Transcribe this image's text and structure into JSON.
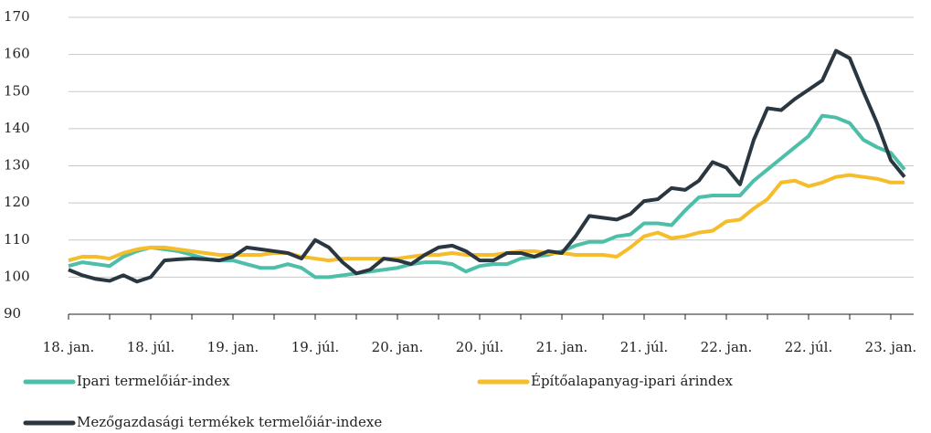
{
  "chart_data": {
    "type": "line",
    "categories": [
      "18. jan.",
      null,
      null,
      null,
      null,
      null,
      "18. júl.",
      null,
      null,
      null,
      null,
      null,
      "19. jan.",
      null,
      null,
      null,
      null,
      null,
      "19. júl.",
      null,
      null,
      null,
      null,
      null,
      "20. jan.",
      null,
      null,
      null,
      null,
      null,
      "20. júl.",
      null,
      null,
      null,
      null,
      null,
      "21. jan.",
      null,
      null,
      null,
      null,
      null,
      "21. júl.",
      null,
      null,
      null,
      null,
      null,
      "22. jan.",
      null,
      null,
      null,
      null,
      null,
      "22. júl.",
      null,
      null,
      null,
      null,
      null,
      "23. jan.",
      null
    ],
    "series": [
      {
        "name": "Ipari termelőiár-index",
        "color": "#4dbfa8",
        "values": [
          103,
          104,
          103.5,
          103,
          105.5,
          107,
          108,
          107.5,
          107,
          106,
          105,
          104.5,
          104.5,
          103.5,
          102.5,
          102.5,
          103.5,
          102.5,
          100,
          100,
          100.5,
          101,
          101.5,
          102,
          102.5,
          103.5,
          104,
          104,
          103.5,
          101.5,
          103,
          103.5,
          103.5,
          105,
          105.5,
          106,
          107,
          108.5,
          109.5,
          109.5,
          111,
          111.5,
          114.5,
          114.5,
          114,
          118,
          121.5,
          122,
          122,
          122,
          126,
          129,
          132,
          135,
          138,
          143.5,
          143,
          141.5,
          137,
          135,
          133.5,
          129
        ]
      },
      {
        "name": "Építőalapanyag-ipari árindex",
        "color": "#f5bd2b",
        "values": [
          104.5,
          105.5,
          105.5,
          105,
          106.5,
          107.5,
          108,
          108,
          107.5,
          107,
          106.5,
          106,
          106,
          106,
          106,
          106.5,
          106.5,
          105.5,
          105,
          104.5,
          105,
          105,
          105,
          105,
          105,
          105.5,
          106,
          106,
          106.5,
          106,
          106,
          106,
          106.5,
          107,
          107,
          106.5,
          106.5,
          106,
          106,
          106,
          105.5,
          108,
          111,
          112,
          110.5,
          111,
          112,
          112.5,
          115,
          115.5,
          118.5,
          121,
          125.5,
          126,
          124.5,
          125.5,
          127,
          127.5,
          127,
          126.5,
          125.5,
          125.5
        ]
      },
      {
        "name": "Mezőgazdasági termékek termelőiár-indexe",
        "color": "#2a3640",
        "values": [
          102,
          100.5,
          99.5,
          99,
          100.5,
          98.8,
          100,
          104.5,
          104.8,
          105,
          104.8,
          104.5,
          105.5,
          108,
          107.5,
          107,
          106.5,
          105,
          110,
          108,
          104,
          101,
          102,
          105,
          104.5,
          103.5,
          106,
          108,
          108.5,
          107,
          104.5,
          104.5,
          106.5,
          106.5,
          105.5,
          107,
          106.5,
          111,
          116.5,
          116,
          115.5,
          117,
          120.5,
          121,
          124,
          123.5,
          126,
          131,
          129.5,
          125,
          137,
          145.5,
          145,
          148,
          150.5,
          153,
          161,
          159,
          150,
          141.5,
          131.5,
          127
        ]
      }
    ],
    "ylim": [
      90,
      170
    ],
    "yticks": [
      90,
      100,
      110,
      120,
      130,
      140,
      150,
      160,
      170
    ],
    "grid": true
  }
}
